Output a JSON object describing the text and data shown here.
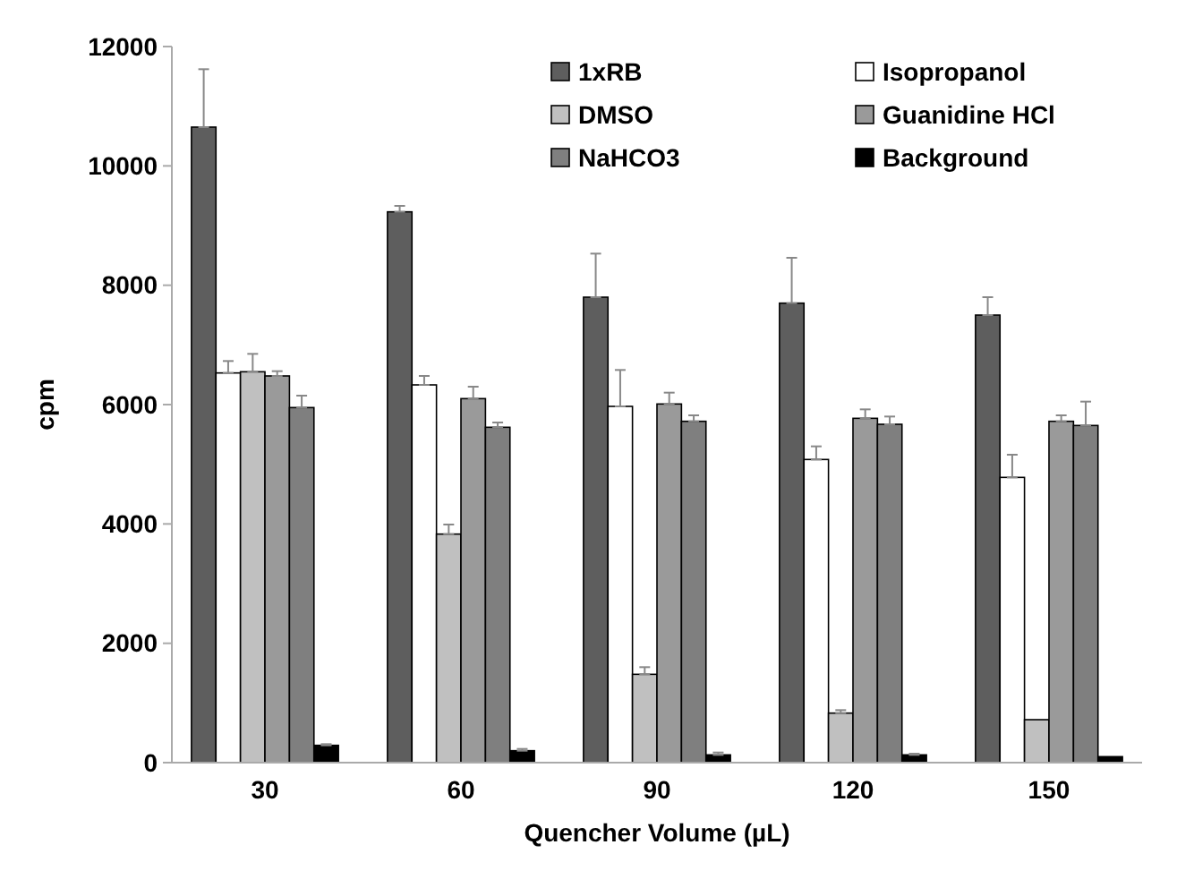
{
  "chart_data": {
    "type": "bar",
    "xlabel": "Quencher Volume (µL)",
    "ylabel": "cpm",
    "categories": [
      "30",
      "60",
      "90",
      "120",
      "150"
    ],
    "ylim": [
      0,
      12000
    ],
    "yticks": [
      0,
      2000,
      4000,
      6000,
      8000,
      10000,
      12000
    ],
    "legend": "top right",
    "grid": false,
    "series": [
      {
        "name": "1xRB",
        "color": "#5e5e5e",
        "values": [
          10650,
          9230,
          7800,
          7700,
          7500
        ],
        "errors": [
          [
            10650,
            11620
          ],
          [
            9230,
            9330
          ],
          [
            7800,
            8530
          ],
          [
            7700,
            8460
          ],
          [
            7500,
            7800
          ]
        ]
      },
      {
        "name": "Isopropanol",
        "color": "#ffffff",
        "values": [
          6530,
          6330,
          5970,
          5080,
          4780
        ],
        "errors": [
          [
            6530,
            6730
          ],
          [
            6330,
            6480
          ],
          [
            5970,
            6580
          ],
          [
            5080,
            5300
          ],
          [
            4780,
            5160
          ]
        ]
      },
      {
        "name": "DMSO",
        "color": "#c0c0c0",
        "values": [
          6550,
          3830,
          1480,
          830,
          720
        ],
        "errors": [
          [
            6550,
            6850
          ],
          [
            3830,
            3990
          ],
          [
            1480,
            1600
          ],
          [
            830,
            880
          ],
          null
        ]
      },
      {
        "name": "Guanidine HCl",
        "color": "#9a9a9a",
        "values": [
          6480,
          6100,
          6010,
          5770,
          5720
        ],
        "errors": [
          [
            6480,
            6560
          ],
          [
            6100,
            6300
          ],
          [
            6010,
            6200
          ],
          [
            5770,
            5920
          ],
          [
            5720,
            5820
          ]
        ]
      },
      {
        "name": "NaHCO3",
        "color": "#7f7f7f",
        "values": [
          5950,
          5620,
          5720,
          5670,
          5650
        ],
        "errors": [
          [
            5950,
            6150
          ],
          [
            5620,
            5700
          ],
          [
            5720,
            5820
          ],
          [
            5670,
            5800
          ],
          [
            5650,
            6050
          ]
        ]
      },
      {
        "name": "Background",
        "color": "#000000",
        "values": [
          290,
          200,
          130,
          130,
          100
        ],
        "errors": [
          [
            290,
            310
          ],
          [
            200,
            230
          ],
          [
            130,
            170
          ],
          [
            130,
            150
          ],
          null
        ]
      }
    ]
  }
}
